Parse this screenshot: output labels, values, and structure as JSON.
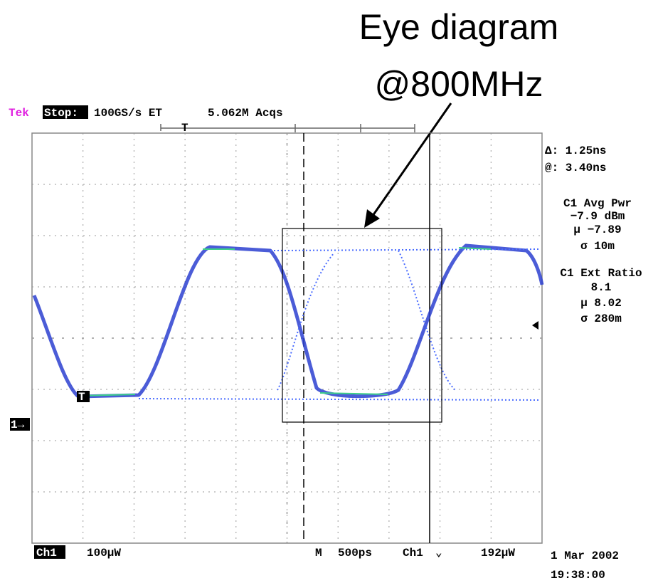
{
  "annotation": {
    "line1": "Eye diagram",
    "line2": "@800MHz"
  },
  "header": {
    "brand": "Tek",
    "state": "Stop:",
    "rate": "100GS/s ET",
    "acqs": "5.062M Acqs",
    "trigger_marker": "T"
  },
  "readouts": {
    "delta": "Δ: 1.25ns",
    "at": "@: 3.40ns",
    "avg_pwr": {
      "title": "C1 Avg Pwr",
      "value": "−7.9 dBm",
      "mean": "µ −7.89",
      "sigma": "σ 10m"
    },
    "ext_ratio": {
      "title": "C1 Ext Ratio",
      "value": "8.1",
      "mean": "µ 8.02",
      "sigma": "σ 280m"
    }
  },
  "markers": {
    "channel": "1→",
    "trace_trigger": "T"
  },
  "footer": {
    "channel": "Ch1",
    "scale": "100µW",
    "mode": "M",
    "timebase": "500ps",
    "trig_channel": "Ch1",
    "trig_slope": "⌄",
    "trig_level": "192µW",
    "date": "1 Mar 2002",
    "time": "19:38:00"
  }
}
